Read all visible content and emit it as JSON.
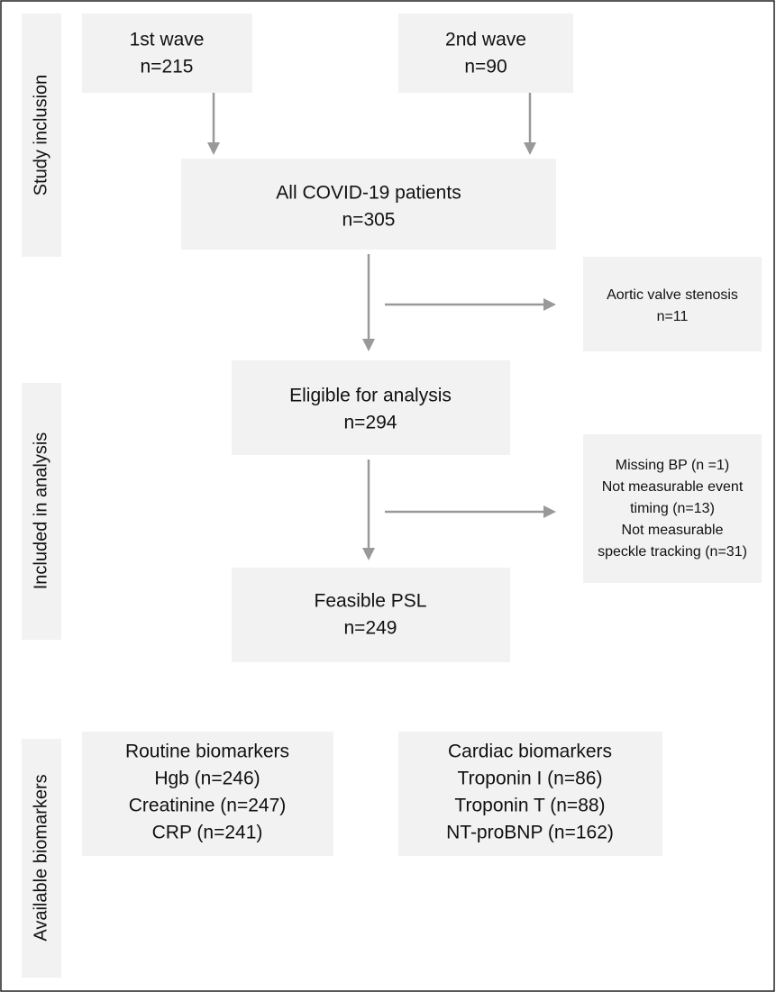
{
  "side_labels": [
    "Study inclusion",
    "Included in analysis",
    "Available biomarkers"
  ],
  "nodes": [
    {
      "lines": [
        "1st wave",
        "n=215"
      ]
    },
    {
      "lines": [
        "2nd wave",
        "n=90"
      ]
    },
    {
      "lines": [
        "All COVID-19 patients",
        "n=305"
      ]
    },
    {
      "lines": [
        "Aortic valve stenosis",
        "n=11"
      ]
    },
    {
      "lines": [
        "Eligible for analysis",
        "n=294"
      ]
    },
    {
      "lines": [
        "Missing BP (n =1)",
        "Not measurable event",
        "timing (n=13)",
        "Not measurable",
        "speckle tracking (n=31)"
      ]
    },
    {
      "lines": [
        "Feasible PSL",
        "n=249"
      ]
    },
    {
      "lines": [
        "Routine biomarkers",
        "Hgb (n=246)",
        "Creatinine (n=247)",
        "CRP (n=241)"
      ]
    },
    {
      "lines": [
        "Cardiac biomarkers",
        "Troponin I (n=86)",
        "Troponin T (n=88)",
        "NT-proBNP (n=162)"
      ]
    }
  ]
}
